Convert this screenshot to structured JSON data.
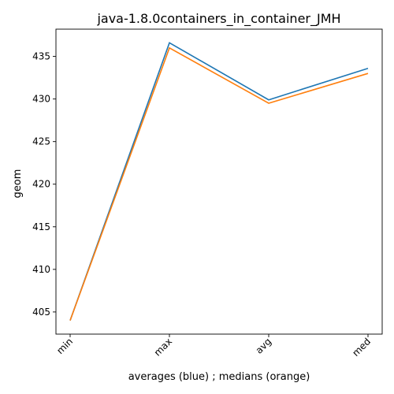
{
  "chart_data": {
    "type": "line",
    "title": "java-1.8.0containers_in_container_JMH",
    "xlabel": "averages (blue) ; medians (orange)",
    "ylabel": "geom",
    "categories": [
      "min",
      "max",
      "avg",
      "med"
    ],
    "series": [
      {
        "color": "#1f77b4",
        "values": [
          404.0,
          436.6,
          429.9,
          433.6
        ]
      },
      {
        "color": "#ff7f0e",
        "values": [
          404.0,
          436.0,
          429.5,
          433.0
        ]
      }
    ],
    "ylim": [
      402.4,
      438.2
    ],
    "yticks": [
      405,
      410,
      415,
      420,
      425,
      430,
      435
    ],
    "grid": false,
    "legend": "none"
  }
}
